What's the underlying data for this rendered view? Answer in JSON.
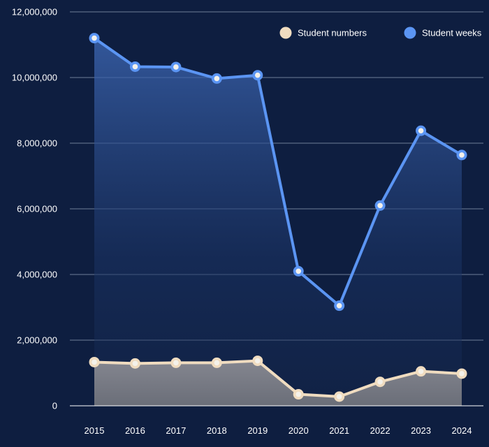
{
  "chart_data": {
    "type": "line",
    "title": "",
    "xlabel": "",
    "ylabel": "",
    "categories": [
      "2015",
      "2016",
      "2017",
      "2018",
      "2019",
      "2020",
      "2021",
      "2022",
      "2023",
      "2024"
    ],
    "ylim": [
      0,
      12000000
    ],
    "yticks": [
      0,
      2000000,
      4000000,
      6000000,
      8000000,
      10000000,
      12000000
    ],
    "ytick_labels": [
      "0",
      "2,000,000",
      "4,000,000",
      "6,000,000",
      "8,000,000",
      "10,000,000",
      "12,000,000"
    ],
    "grid": true,
    "legend_position": "top-right",
    "series": [
      {
        "name": "Student numbers",
        "color": "#f0dcc0",
        "values": [
          1330000,
          1290000,
          1310000,
          1310000,
          1370000,
          350000,
          280000,
          730000,
          1050000,
          980000
        ]
      },
      {
        "name": "Student weeks",
        "color": "#5b95f3",
        "values": [
          11200000,
          10330000,
          10320000,
          9970000,
          10070000,
          4100000,
          3050000,
          6100000,
          8380000,
          7640000
        ]
      }
    ]
  },
  "colors": {
    "background": "#0e1e40",
    "grid": "#6e7d99",
    "baseline": "#ffffff"
  }
}
